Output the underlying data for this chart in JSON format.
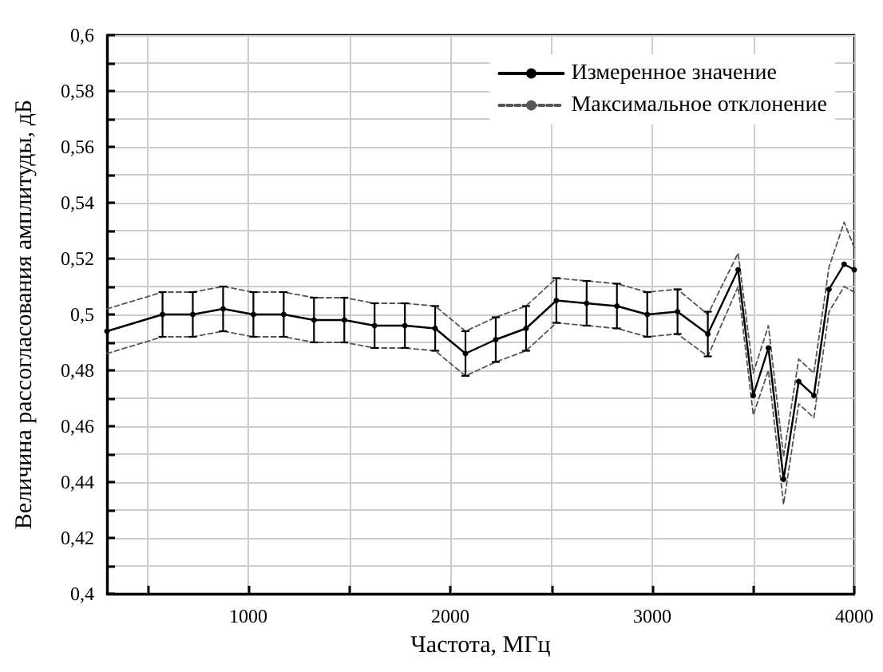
{
  "chart_data": {
    "type": "line",
    "xlabel": "Частота, МГц",
    "ylabel": "Величина рассогласования амплитуды, дБ",
    "x": [
      300,
      575,
      725,
      875,
      1025,
      1175,
      1325,
      1475,
      1625,
      1775,
      1925,
      2075,
      2225,
      2375,
      2525,
      2675,
      2825,
      2975,
      3125,
      3275,
      3425,
      3500,
      3575,
      3650,
      3725,
      3800,
      3875,
      3950,
      4000
    ],
    "series": [
      {
        "name": "Измеренное значение",
        "color": "#000000",
        "marker": "circle",
        "line_style": "solid",
        "values": [
          0.494,
          0.5,
          0.5,
          0.502,
          0.5,
          0.5,
          0.498,
          0.498,
          0.496,
          0.496,
          0.495,
          0.486,
          0.491,
          0.495,
          0.505,
          0.504,
          0.503,
          0.5,
          0.501,
          0.493,
          0.516,
          0.471,
          0.488,
          0.441,
          0.476,
          0.471,
          0.509,
          0.518,
          0.516
        ],
        "errors": [
          null,
          0.008,
          0.008,
          0.008,
          0.008,
          0.008,
          0.008,
          0.008,
          0.008,
          0.008,
          0.008,
          0.008,
          0.008,
          0.008,
          0.008,
          0.008,
          0.008,
          0.008,
          0.008,
          0.008,
          null,
          null,
          null,
          null,
          null,
          null,
          null,
          null,
          null
        ]
      },
      {
        "name": "Максимальное отклонение",
        "color": "#555555",
        "marker": "none",
        "line_style": "dashed",
        "values": [
          0.502,
          0.508,
          0.508,
          0.51,
          0.508,
          0.508,
          0.506,
          0.506,
          0.504,
          0.504,
          0.503,
          0.494,
          0.499,
          0.503,
          0.513,
          0.512,
          0.511,
          0.508,
          0.509,
          0.5,
          0.522,
          0.479,
          0.496,
          0.449,
          0.484,
          0.479,
          0.517,
          0.533,
          0.524
        ]
      },
      {
        "color": "#555555",
        "marker": "none",
        "line_style": "dashed",
        "values": [
          0.486,
          0.492,
          0.492,
          0.494,
          0.492,
          0.492,
          0.49,
          0.49,
          0.488,
          0.488,
          0.487,
          0.478,
          0.483,
          0.487,
          0.497,
          0.496,
          0.495,
          0.492,
          0.493,
          0.485,
          0.51,
          0.464,
          0.48,
          0.432,
          0.468,
          0.463,
          0.501,
          0.51,
          0.508
        ]
      }
    ],
    "xlim": [
      300,
      4000
    ],
    "xticks": [
      {
        "value": 500,
        "label": null
      },
      1000,
      {
        "value": 1500,
        "label": null
      },
      2000,
      {
        "value": 2500,
        "label": null
      },
      3000,
      {
        "value": 3500,
        "label": null
      },
      4000
    ],
    "ylim": [
      0.4,
      0.6
    ],
    "yticks": [
      {
        "value": 0.4,
        "label": "0,4"
      },
      {
        "value": 0.41,
        "label": null
      },
      {
        "value": 0.42,
        "label": "0,42"
      },
      {
        "value": 0.43,
        "label": null
      },
      {
        "value": 0.44,
        "label": "0,44"
      },
      {
        "value": 0.45,
        "label": null
      },
      {
        "value": 0.46,
        "label": "0,46"
      },
      {
        "value": 0.47,
        "label": null
      },
      {
        "value": 0.48,
        "label": "0,48"
      },
      {
        "value": 0.49,
        "label": null
      },
      {
        "value": 0.5,
        "label": "0,5"
      },
      {
        "value": 0.51,
        "label": null
      },
      {
        "value": 0.52,
        "label": "0,52"
      },
      {
        "value": 0.53,
        "label": null
      },
      {
        "value": 0.54,
        "label": "0,54"
      },
      {
        "value": 0.55,
        "label": null
      },
      {
        "value": 0.56,
        "label": "0,56"
      },
      {
        "value": 0.57,
        "label": null
      },
      {
        "value": 0.58,
        "label": "0,58"
      },
      {
        "value": 0.59,
        "label": null
      },
      {
        "value": 0.6,
        "label": "0,6"
      }
    ],
    "grid": true,
    "legend": "top right"
  }
}
